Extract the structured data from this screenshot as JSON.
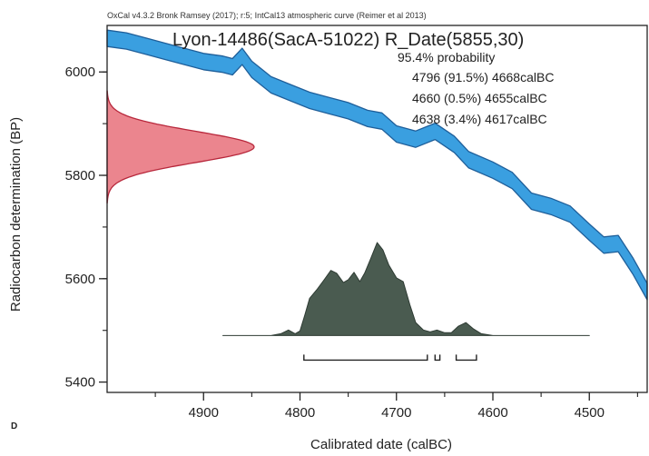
{
  "chart_data": {
    "type": "area",
    "header": "OxCal v4.3.2 Bronk Ramsey (2017); r:5; IntCal13 atmospheric curve (Reimer et al 2013)",
    "title": "Lyon-14486(SacA-51022) R_Date(5855,30)",
    "probability_label": "95.4% probability",
    "ranges": [
      {
        "text": "4796 (91.5%) 4668calBC",
        "from": 4796,
        "to": 4668,
        "percent": 91.5
      },
      {
        "text": "4660 (0.5%) 4655calBC",
        "from": 4660,
        "to": 4655,
        "percent": 0.5
      },
      {
        "text": "4638 (3.4%) 4617calBC",
        "from": 4638,
        "to": 4617,
        "percent": 3.4
      }
    ],
    "xlabel": "Calibrated date (calBC)",
    "ylabel": "Radiocarbon determination (BP)",
    "panel_label": "D",
    "xlim": [
      5000,
      4440
    ],
    "ylim": [
      5380,
      6090
    ],
    "x_ticks": [
      {
        "value": 4900,
        "label": "4900"
      },
      {
        "value": 4800,
        "label": "4800"
      },
      {
        "value": 4700,
        "label": "4700"
      },
      {
        "value": 4600,
        "label": "4600"
      },
      {
        "value": 4500,
        "label": "4500"
      }
    ],
    "y_ticks": [
      {
        "value": 6000,
        "label": "6000"
      },
      {
        "value": 5800,
        "label": "5800"
      },
      {
        "value": 5600,
        "label": "5600"
      },
      {
        "value": 5400,
        "label": "5400"
      }
    ],
    "radiocarbon_date": {
      "mean": 5855,
      "sd": 30
    },
    "calibration_curve": {
      "name": "IntCal13",
      "color": "#3a9fe0",
      "points": [
        [
          5000,
          6065
        ],
        [
          4980,
          6060
        ],
        [
          4960,
          6050
        ],
        [
          4940,
          6040
        ],
        [
          4920,
          6030
        ],
        [
          4900,
          6020
        ],
        [
          4880,
          6015
        ],
        [
          4870,
          6010
        ],
        [
          4860,
          6030
        ],
        [
          4850,
          6005
        ],
        [
          4830,
          5975
        ],
        [
          4810,
          5960
        ],
        [
          4790,
          5945
        ],
        [
          4770,
          5935
        ],
        [
          4750,
          5925
        ],
        [
          4730,
          5910
        ],
        [
          4715,
          5905
        ],
        [
          4700,
          5880
        ],
        [
          4680,
          5870
        ],
        [
          4660,
          5885
        ],
        [
          4640,
          5860
        ],
        [
          4625,
          5830
        ],
        [
          4600,
          5810
        ],
        [
          4580,
          5790
        ],
        [
          4560,
          5750
        ],
        [
          4540,
          5740
        ],
        [
          4520,
          5725
        ],
        [
          4500,
          5690
        ],
        [
          4485,
          5665
        ],
        [
          4470,
          5668
        ],
        [
          4455,
          5625
        ],
        [
          4440,
          5575
        ]
      ]
    },
    "measurement_color": "#e8707a",
    "posterior_color": "#4a5b50",
    "posterior_baseline": 5490,
    "posterior_density": [
      [
        4880,
        0
      ],
      [
        4830,
        0
      ],
      [
        4820,
        0.02
      ],
      [
        4812,
        0.06
      ],
      [
        4805,
        0.02
      ],
      [
        4800,
        0.05
      ],
      [
        4795,
        0.22
      ],
      [
        4790,
        0.4
      ],
      [
        4782,
        0.5
      ],
      [
        4775,
        0.6
      ],
      [
        4768,
        0.7
      ],
      [
        4762,
        0.67
      ],
      [
        4755,
        0.57
      ],
      [
        4750,
        0.6
      ],
      [
        4744,
        0.68
      ],
      [
        4738,
        0.58
      ],
      [
        4733,
        0.67
      ],
      [
        4727,
        0.82
      ],
      [
        4720,
        1.0
      ],
      [
        4714,
        0.92
      ],
      [
        4708,
        0.76
      ],
      [
        4700,
        0.62
      ],
      [
        4693,
        0.58
      ],
      [
        4686,
        0.33
      ],
      [
        4680,
        0.14
      ],
      [
        4672,
        0.06
      ],
      [
        4665,
        0.04
      ],
      [
        4658,
        0.06
      ],
      [
        4650,
        0.03
      ],
      [
        4643,
        0.03
      ],
      [
        4636,
        0.1
      ],
      [
        4628,
        0.14
      ],
      [
        4620,
        0.07
      ],
      [
        4612,
        0.02
      ],
      [
        4600,
        0
      ],
      [
        4500,
        0
      ]
    ],
    "posterior_max_height_bp": 180,
    "grid": false
  }
}
